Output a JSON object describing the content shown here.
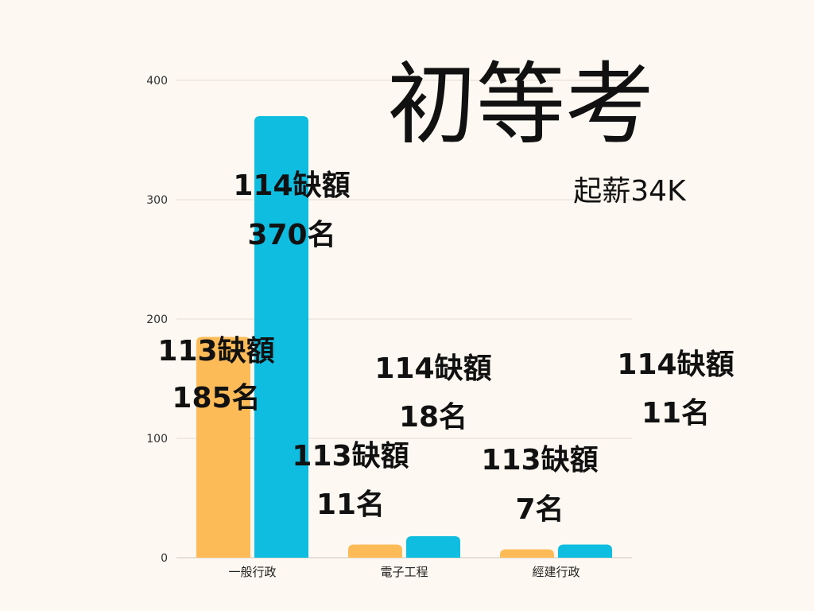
{
  "chart_data": {
    "type": "bar",
    "title": "初等考",
    "subtitle": "起薪34K",
    "categories": [
      "一般行政",
      "電子工程",
      "經建行政"
    ],
    "series": [
      {
        "name": "",
        "color": "#fdbb58",
        "values": [
          185,
          11,
          7
        ]
      },
      {
        "name": "",
        "color": "#0ebde0",
        "values": [
          370,
          18,
          11
        ]
      }
    ],
    "yticks": [
      0,
      100,
      200,
      300,
      400
    ],
    "ylim": [
      0,
      400
    ],
    "grid": true,
    "annotations": [
      {
        "line1": "113缺額",
        "line2": "185名"
      },
      {
        "line1": "114缺額",
        "line2": "370名"
      },
      {
        "line1": "113缺額",
        "line2": "11名"
      },
      {
        "line1": "114缺額",
        "line2": "18名"
      },
      {
        "line1": "113缺額",
        "line2": "7名"
      },
      {
        "line1": "114缺額",
        "line2": "11名"
      }
    ]
  }
}
